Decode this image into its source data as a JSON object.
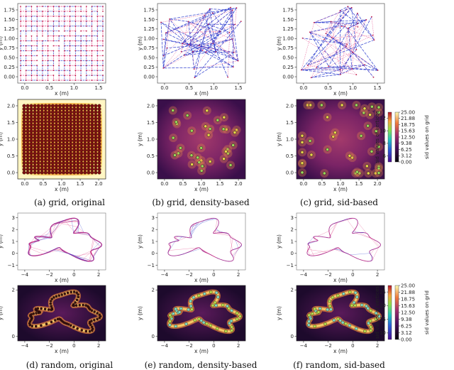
{
  "chart_data": [
    {
      "id": "a_top",
      "type": "graph",
      "desc": "grid graph, original",
      "xlabel": "x (m)",
      "ylabel": "y (m)",
      "xlim": [
        0,
        1.9
      ],
      "ylim": [
        0,
        1.9
      ],
      "xticks": [
        "0.0",
        "0.5",
        "1.0",
        "1.5"
      ],
      "yticks": [
        "0.00",
        "0.25",
        "0.50",
        "0.75",
        "1.00",
        "1.25",
        "1.50",
        "1.75"
      ]
    },
    {
      "id": "b_top",
      "type": "graph",
      "desc": "grid graph, density-based",
      "xlabel": "x (m)",
      "ylabel": "y (m)",
      "xlim": [
        0,
        1.9
      ],
      "ylim": [
        0,
        1.9
      ],
      "xticks": [
        "0.0",
        "0.5",
        "1.0",
        "1.5"
      ],
      "yticks": [
        "0.00",
        "0.25",
        "0.50",
        "0.75",
        "1.00",
        "1.25",
        "1.50",
        "1.75"
      ]
    },
    {
      "id": "c_top",
      "type": "graph",
      "desc": "grid graph, sid-based",
      "xlabel": "x (m)",
      "ylabel": "y (m)",
      "xlim": [
        0,
        1.9
      ],
      "ylim": [
        0,
        1.9
      ],
      "xticks": [
        "0.0",
        "0.5",
        "1.0",
        "1.5"
      ],
      "yticks": [
        "0.00",
        "0.25",
        "0.50",
        "0.75",
        "1.00",
        "1.25",
        "1.50",
        "1.75"
      ]
    },
    {
      "id": "a_bot",
      "type": "heatmap",
      "desc": "grid, original sid map",
      "xlabel": "x (m)",
      "ylabel": "y (m)",
      "xlim": [
        -0.15,
        2.1
      ],
      "ylim": [
        -0.15,
        2.1
      ],
      "xticks": [
        "0.0",
        "0.5",
        "1.0",
        "1.5",
        "2.0"
      ],
      "yticks": [
        "0.0",
        "0.5",
        "1.0",
        "1.5",
        "2.0"
      ]
    },
    {
      "id": "b_bot",
      "type": "heatmap",
      "desc": "grid, density-based sid map",
      "xlabel": "x (m)",
      "ylabel": "y (m)",
      "xlim": [
        -0.15,
        2.1
      ],
      "ylim": [
        -0.15,
        2.1
      ],
      "xticks": [
        "0.0",
        "0.5",
        "1.0",
        "1.5",
        "2.0"
      ],
      "yticks": [
        "0.0",
        "0.5",
        "1.0",
        "1.5",
        "2.0"
      ]
    },
    {
      "id": "c_bot",
      "type": "heatmap",
      "desc": "grid, sid-based sid map",
      "xlabel": "x (m)",
      "ylabel": "y (m)",
      "xlim": [
        -0.15,
        2.1
      ],
      "ylim": [
        -0.15,
        2.1
      ],
      "xticks": [
        "0.0",
        "0.5",
        "1.0",
        "1.5",
        "2.0"
      ],
      "yticks": [
        "0.0",
        "0.5",
        "1.0",
        "1.5",
        "2.0"
      ]
    },
    {
      "id": "d_top",
      "type": "graph",
      "desc": "random graph, original",
      "xlabel": "x (m)",
      "ylabel": "y (m)",
      "xlim": [
        -5,
        3.5
      ],
      "ylim": [
        -1.3,
        3.4
      ],
      "xticks": [
        "−4",
        "−2",
        "0",
        "2"
      ],
      "yticks": [
        "−1",
        "0",
        "1",
        "2",
        "3"
      ]
    },
    {
      "id": "e_top",
      "type": "graph",
      "desc": "random graph, density-based",
      "xlabel": "x (m)",
      "ylabel": "y (m)",
      "xlim": [
        -5,
        3.5
      ],
      "ylim": [
        -1.3,
        3.4
      ],
      "xticks": [
        "−4",
        "−2",
        "0",
        "2"
      ],
      "yticks": [
        "−1",
        "0",
        "1",
        "2",
        "3"
      ]
    },
    {
      "id": "f_top",
      "type": "graph",
      "desc": "random graph, sid-based",
      "xlabel": "x (m)",
      "ylabel": "y (m)",
      "xlim": [
        -5,
        3.5
      ],
      "ylim": [
        -1.3,
        3.4
      ],
      "xticks": [
        "−4",
        "−2",
        "0",
        "2"
      ],
      "yticks": [
        "−1",
        "0",
        "1",
        "2",
        "3"
      ]
    },
    {
      "id": "d_bot",
      "type": "heatmap",
      "desc": "random, original sid map",
      "xlabel": "x (m)",
      "ylabel": "y (m)",
      "xlim": [
        -5.6,
        3.6
      ],
      "ylim": [
        -1.7,
        3.4
      ],
      "xticks": [
        "−4",
        "−2",
        "0",
        "2"
      ],
      "yticks": [
        "0",
        "2"
      ]
    },
    {
      "id": "e_bot",
      "type": "heatmap",
      "desc": "random, density-based sid map",
      "xlabel": "x (m)",
      "ylabel": "y (m)",
      "xlim": [
        -5.6,
        3.6
      ],
      "ylim": [
        -1.7,
        3.4
      ],
      "xticks": [
        "−4",
        "−2",
        "0",
        "2"
      ],
      "yticks": [
        "0",
        "2"
      ]
    },
    {
      "id": "f_bot",
      "type": "heatmap",
      "desc": "random, sid-based sid map",
      "xlabel": "x (m)",
      "ylabel": "y (m)",
      "xlim": [
        -5.6,
        3.6
      ],
      "ylim": [
        -1.7,
        3.4
      ],
      "xticks": [
        "−4",
        "−2",
        "0",
        "2"
      ],
      "yticks": [
        "0",
        "2"
      ]
    }
  ],
  "colorbars": {
    "grid": {
      "vertices_label": "sid values of vertices",
      "grid_label": "sid values on grid",
      "vertices_ticks": [
        "6",
        "8",
        "10",
        "12"
      ],
      "grid_ticks": [
        "25.00",
        "21.88",
        "18.75",
        "15.63",
        "12.50",
        "9.38",
        "6.25",
        "3.12",
        "0.00"
      ]
    },
    "random": {
      "vertices_label": "sid values of vertices",
      "grid_label": "sid values on grid",
      "vertices_ticks": [
        "25",
        "20",
        "15",
        "10"
      ],
      "grid_ticks": [
        "25.00",
        "21.88",
        "18.75",
        "15.63",
        "12.50",
        "9.38",
        "6.25",
        "3.12",
        "0.00"
      ]
    }
  },
  "captions": {
    "a": "(a) grid, original",
    "b": "(b) grid, density-based",
    "c": "(c) grid, sid-based",
    "d": "(d) random, original",
    "e": "(e) random, density-based",
    "f": "(f) random, sid-based"
  },
  "colors": {
    "heat_low": "#1b0c3e",
    "heat_mid": "#8c2a6f",
    "heat_high": "#fbe37a",
    "graph_edge_red": "#e0307a",
    "graph_edge_blue": "#2233cc",
    "node_face": "#c8d64a",
    "node_edge": "#0a0a0a"
  }
}
